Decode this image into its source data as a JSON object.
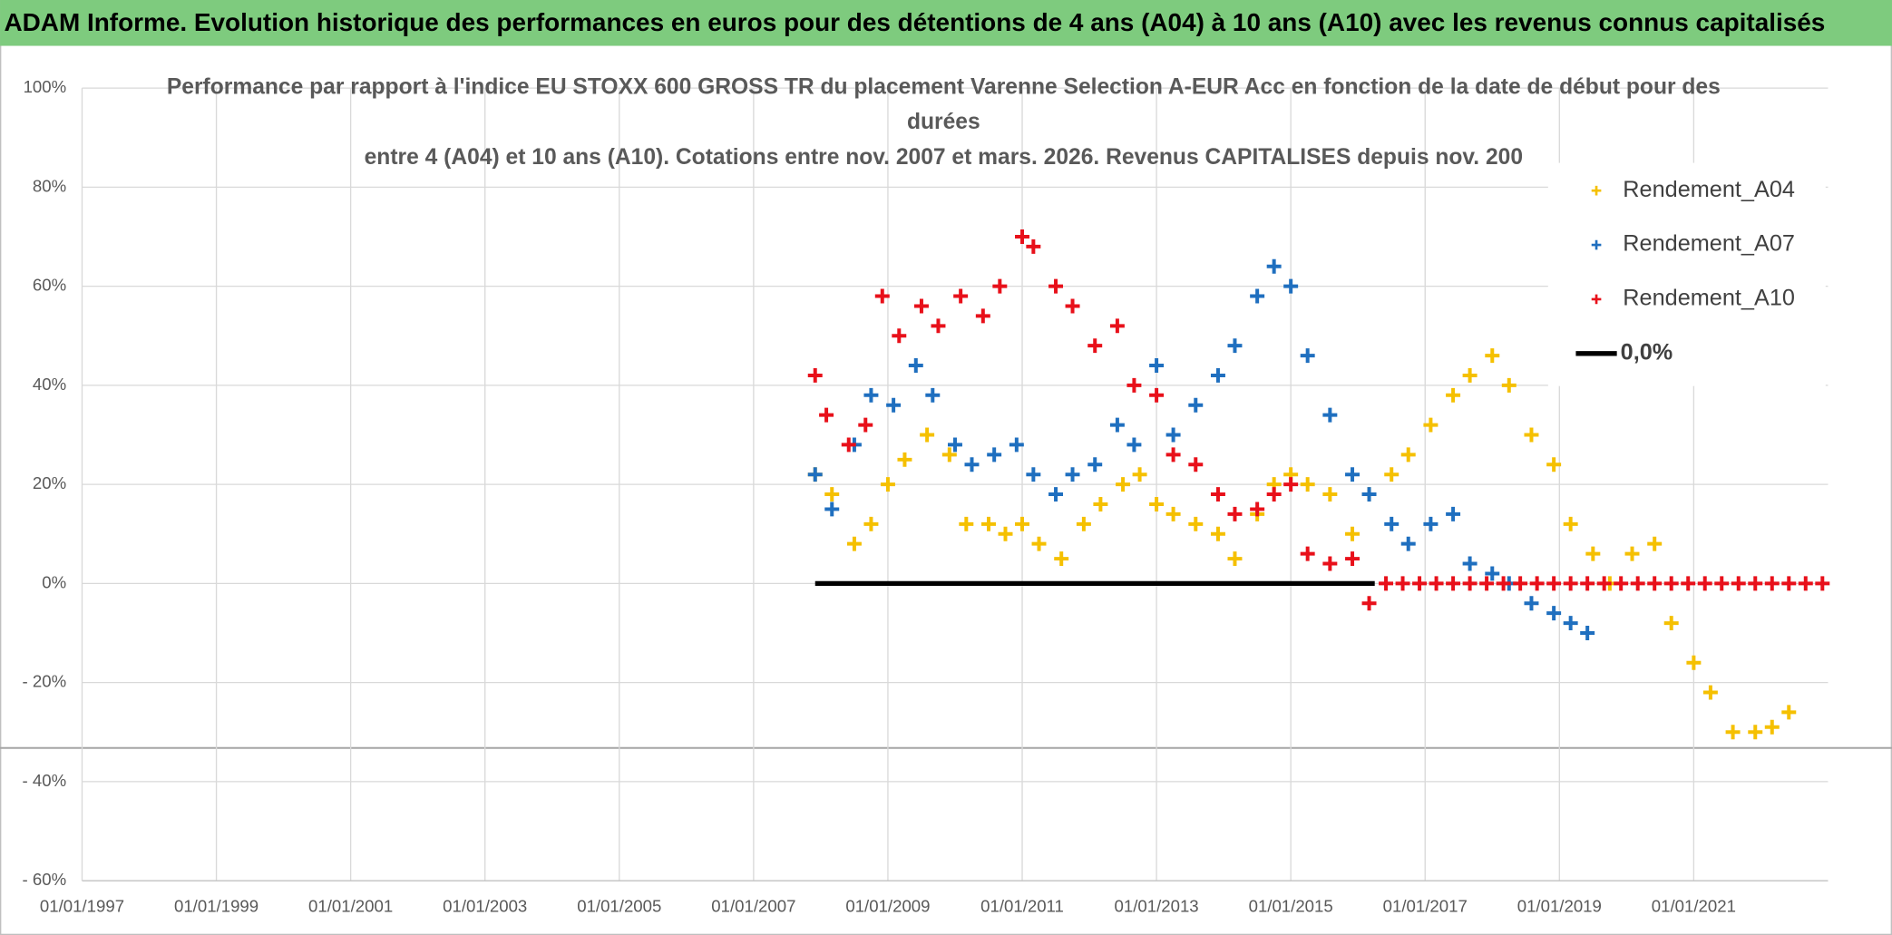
{
  "header": {
    "title": "ADAM Informe. Evolution historique des performances en euros pour des détentions de 4 ans (A04) à 10 ans (A10) avec les revenus connus capitalisés"
  },
  "chart_data": {
    "type": "scatter",
    "title": [
      "Performance par rapport à l'indice EU STOXX 600 GROSS TR  du placement Varenne Selection A-EUR Acc en fonction de la date de début pour des",
      "durées",
      "entre 4 (A04) et 10 ans (A10). Cotations entre nov. 2007 et mars. 2026. Revenus CAPITALISES depuis nov. 200"
    ],
    "xlim": [
      "01/01/1997",
      "01/01/2023"
    ],
    "xticks": [
      "01/01/1997",
      "01/01/1999",
      "01/01/2001",
      "01/01/2003",
      "01/01/2005",
      "01/01/2007",
      "01/01/2009",
      "01/01/2011",
      "01/01/2013",
      "01/01/2015",
      "01/01/2017",
      "01/01/2019",
      "01/01/2021"
    ],
    "ylim": [
      -60,
      100
    ],
    "yticks": [
      {
        "value": -60,
        "label": "- 60%"
      },
      {
        "value": -40,
        "label": "- 40%"
      },
      {
        "value": -20,
        "label": "- 20%"
      },
      {
        "value": 0,
        "label": "0%"
      },
      {
        "value": 20,
        "label": "20%"
      },
      {
        "value": 40,
        "label": "40%"
      },
      {
        "value": 60,
        "label": "60%"
      },
      {
        "value": 80,
        "label": "80%"
      },
      {
        "value": 100,
        "label": "100%"
      }
    ],
    "grid": true,
    "legend": "right",
    "series": [
      {
        "name": "Rendement_A04",
        "color": "#f5c000",
        "marker": "plus",
        "x": [
          "01/12/2007",
          "01/03/2008",
          "01/07/2008",
          "01/10/2008",
          "01/01/2009",
          "01/04/2009",
          "01/08/2009",
          "01/12/2009",
          "01/03/2010",
          "01/07/2010",
          "01/10/2010",
          "01/01/2011",
          "01/04/2011",
          "01/08/2011",
          "01/12/2011",
          "01/03/2012",
          "01/07/2012",
          "01/10/2012",
          "01/01/2013",
          "01/04/2013",
          "01/08/2013",
          "01/12/2013",
          "01/03/2014",
          "01/07/2014",
          "01/10/2014",
          "01/01/2015",
          "01/04/2015",
          "01/08/2015",
          "01/12/2015",
          "01/03/2016",
          "01/07/2016",
          "01/10/2016",
          "01/02/2017",
          "01/06/2017",
          "01/09/2017",
          "01/01/2018",
          "01/04/2018",
          "01/08/2018",
          "01/12/2018",
          "01/03/2019",
          "01/07/2019",
          "01/10/2019",
          "01/02/2020",
          "01/06/2020",
          "01/09/2020",
          "01/01/2021",
          "01/04/2021",
          "01/08/2021",
          "01/12/2021",
          "01/03/2022",
          "01/06/2022"
        ],
        "values": [
          22,
          18,
          8,
          12,
          20,
          25,
          30,
          26,
          12,
          12,
          10,
          12,
          8,
          5,
          12,
          16,
          20,
          22,
          16,
          14,
          12,
          10,
          5,
          14,
          20,
          22,
          20,
          18,
          10,
          18,
          22,
          26,
          32,
          38,
          42,
          46,
          40,
          30,
          24,
          12,
          6,
          0,
          6,
          8,
          -8,
          -16,
          -22,
          -30,
          -30,
          -29,
          -26
        ]
      },
      {
        "name": "Rendement_A07",
        "color": "#1f6fbf",
        "marker": "plus",
        "x": [
          "01/12/2007",
          "01/03/2008",
          "01/07/2008",
          "01/10/2008",
          "01/02/2009",
          "01/06/2009",
          "01/09/2009",
          "01/01/2010",
          "01/04/2010",
          "01/08/2010",
          "01/12/2010",
          "01/03/2011",
          "01/07/2011",
          "01/10/2011",
          "01/02/2012",
          "01/06/2012",
          "01/09/2012",
          "01/01/2013",
          "01/04/2013",
          "01/08/2013",
          "01/12/2013",
          "01/03/2014",
          "01/07/2014",
          "01/10/2014",
          "01/01/2015",
          "01/04/2015",
          "01/08/2015",
          "01/12/2015",
          "01/03/2016",
          "01/07/2016",
          "01/10/2016",
          "01/02/2017",
          "01/06/2017",
          "01/09/2017",
          "01/01/2018",
          "01/04/2018",
          "01/08/2018",
          "01/12/2018",
          "01/03/2019",
          "01/06/2019"
        ],
        "values": [
          22,
          15,
          28,
          38,
          36,
          44,
          38,
          28,
          24,
          26,
          28,
          22,
          18,
          22,
          24,
          32,
          28,
          44,
          30,
          36,
          42,
          48,
          58,
          64,
          60,
          46,
          34,
          22,
          18,
          12,
          8,
          12,
          14,
          4,
          2,
          0,
          -4,
          -6,
          -8,
          -10
        ]
      },
      {
        "name": "Rendement_A10",
        "color": "#e8101a",
        "marker": "plus",
        "x": [
          "01/12/2007",
          "01/02/2008",
          "01/06/2008",
          "01/09/2008",
          "01/12/2008",
          "01/03/2009",
          "01/07/2009",
          "01/10/2009",
          "01/02/2010",
          "01/06/2010",
          "01/09/2010",
          "01/01/2011",
          "01/03/2011",
          "01/07/2011",
          "01/10/2011",
          "01/02/2012",
          "01/06/2012",
          "01/09/2012",
          "01/01/2013",
          "01/04/2013",
          "01/08/2013",
          "01/12/2013",
          "01/03/2014",
          "01/07/2014",
          "01/10/2014",
          "01/01/2015",
          "01/04/2015",
          "01/08/2015",
          "01/12/2015",
          "01/03/2016",
          "01/06/2016",
          "01/09/2016",
          "01/12/2016",
          "01/03/2017",
          "01/06/2017",
          "01/09/2017",
          "01/12/2017",
          "01/03/2018",
          "01/06/2018",
          "01/09/2018",
          "01/12/2018",
          "01/03/2019",
          "01/06/2019",
          "01/09/2019",
          "01/12/2019",
          "01/03/2020",
          "01/06/2020",
          "01/09/2020",
          "01/12/2020",
          "01/03/2021",
          "01/06/2021",
          "01/09/2021",
          "01/12/2021",
          "01/03/2022",
          "01/06/2022",
          "01/09/2022",
          "01/12/2022"
        ],
        "values": [
          42,
          34,
          28,
          32,
          58,
          50,
          56,
          52,
          58,
          54,
          60,
          70,
          68,
          60,
          56,
          48,
          52,
          40,
          38,
          26,
          24,
          18,
          14,
          15,
          18,
          20,
          6,
          4,
          5,
          -4,
          0,
          0,
          0,
          0,
          0,
          0,
          0,
          0,
          0,
          0,
          0,
          0,
          0,
          0,
          0,
          0,
          0,
          0,
          0,
          0,
          0,
          0,
          0,
          0,
          0,
          0,
          0
        ]
      },
      {
        "name": "0,0%",
        "color": "#000000",
        "marker": "line",
        "x": [
          "01/12/2007",
          "01/04/2016"
        ],
        "values": [
          0,
          0
        ]
      }
    ]
  }
}
